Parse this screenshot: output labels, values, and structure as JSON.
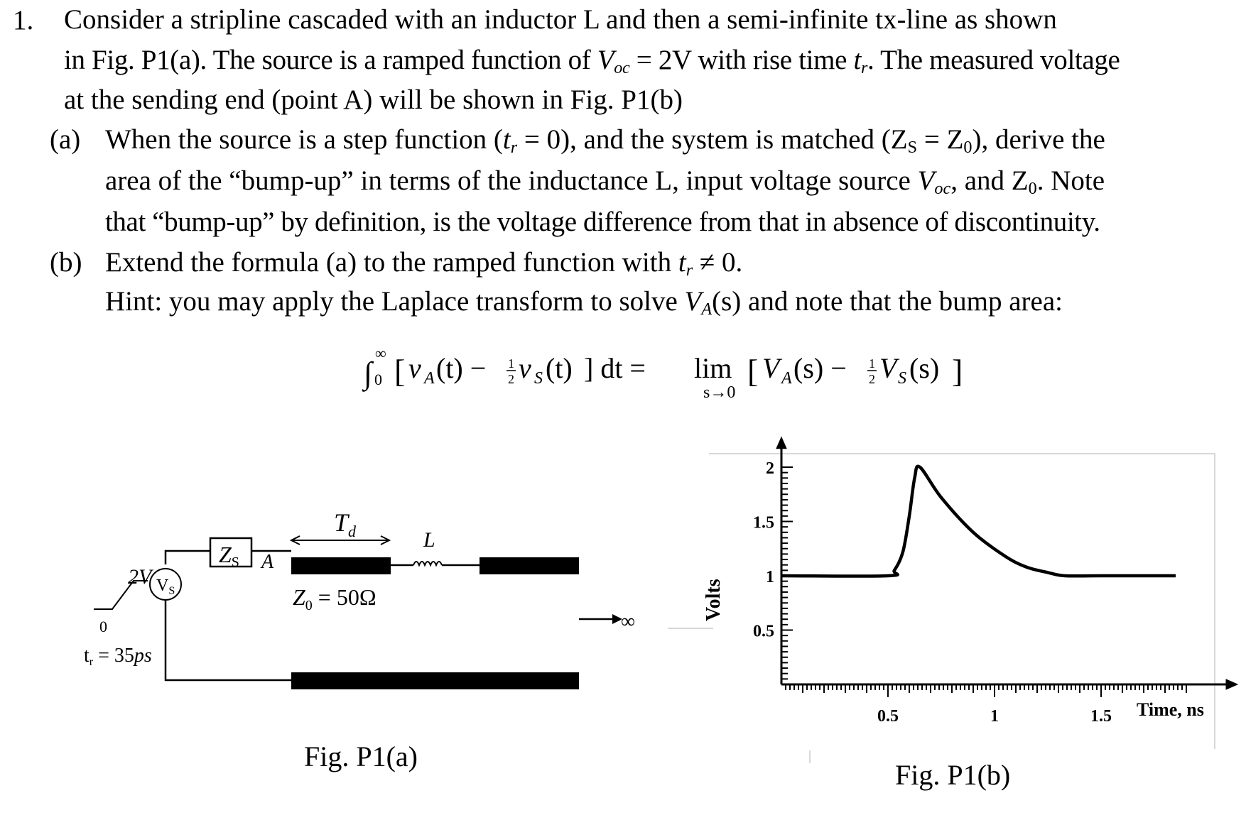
{
  "problem": {
    "number": "1.",
    "intro_l1": "Consider a stripline cascaded with an inductor L and then a semi-infinite tx-line as shown",
    "intro_l2a": "in Fig. P1(a). The source is a ramped function of ",
    "voc_var": "V",
    "voc_sub": "oc",
    "intro_l2b": " = 2V with rise time ",
    "tr_var": "t",
    "tr_sub": "r",
    "intro_l2c": ". The measured voltage",
    "intro_l3": "at the sending end (point A) will be shown in Fig. P1(b)"
  },
  "part_a": {
    "label": "(a)",
    "l1a": "When the source is a step function (",
    "tr_var": "t",
    "tr_sub": "r",
    "l1b": " = 0), and the system is matched (Z",
    "zs_sub": "S",
    "l1c": " = Z",
    "z0_sub": "0",
    "l1d": "), derive the",
    "l2a": "area of the “bump-up” in terms of the inductance L, input voltage source ",
    "voc_var": "V",
    "voc_sub": "oc",
    "l2b": ", and Z",
    "l2c": ". Note",
    "l3": "that “bump-up” by definition, is the voltage difference from that in absence of discontinuity."
  },
  "part_b": {
    "label": "(b)",
    "l1a": "Extend the formula (a) to the ramped function with ",
    "tr_var": "t",
    "tr_sub": "r",
    "l1b": " ≠ 0.",
    "hint_a": "Hint: you may apply the Laplace transform to solve ",
    "va_var": "V",
    "va_sub": "A",
    "hint_b": "(s) and note that the bump area:"
  },
  "equation": {
    "integral": "∫",
    "int_upper": "∞",
    "int_lower": "0",
    "lhs_open": "[",
    "v_a": "v",
    "a_sub": "A",
    "t_arg": "(t) − ",
    "half_num": "1",
    "half_den": "2",
    "v_s": "v",
    "s_sub": "S",
    "t_arg2": "(t)",
    "lhs_close": "] dt = ",
    "lim": "lim",
    "lim_sub": "s→0",
    "rhs_open": "[",
    "V_A": "V",
    "s_arg": "(s) − ",
    "V_S": "V",
    "s_arg2": "(s)",
    "rhs_close": "]"
  },
  "fig_a": {
    "caption": "Fig. P1(a)",
    "td_var": "T",
    "td_sub": "d",
    "l_label": "L",
    "a_label": "A",
    "zs_main": "Z",
    "zs_sub": "S",
    "z0_main": "Z",
    "z0_sub": "0",
    "z0_val": " = 50Ω",
    "src_level": "2V",
    "src_zero": "0",
    "vs_main": "V",
    "vs_sub": "S",
    "tr_text_a": "t",
    "tr_text_sub": "r",
    "tr_text_b": " = 35",
    "tr_text_unit": "ps",
    "infinity": "∞"
  },
  "fig_b": {
    "caption": "Fig. P1(b)",
    "y_axis_label": "Volts",
    "x_axis_label": "Time, ns",
    "y_ticks": [
      "2",
      "1.5",
      "1",
      "0.5"
    ],
    "x_ticks": [
      "0.5",
      "1",
      "1.5"
    ]
  },
  "chart_data": {
    "type": "line",
    "ylabel": "Volts",
    "xlabel": "Time, ns",
    "xlim": [
      0,
      2.0
    ],
    "ylim": [
      0,
      2.25
    ],
    "series": [
      {
        "x": [
          0.0,
          0.5,
          0.53,
          0.57,
          0.6,
          0.625,
          0.65,
          0.75,
          0.9,
          1.05,
          1.15,
          1.25,
          1.33,
          1.5,
          1.85
        ],
        "y": [
          1.0,
          1.0,
          1.05,
          1.22,
          1.55,
          1.9,
          2.0,
          1.72,
          1.4,
          1.18,
          1.08,
          1.03,
          1.0,
          1.0,
          1.0
        ]
      }
    ]
  },
  "colors": {
    "ink": "#000000",
    "background": "#ffffff"
  }
}
